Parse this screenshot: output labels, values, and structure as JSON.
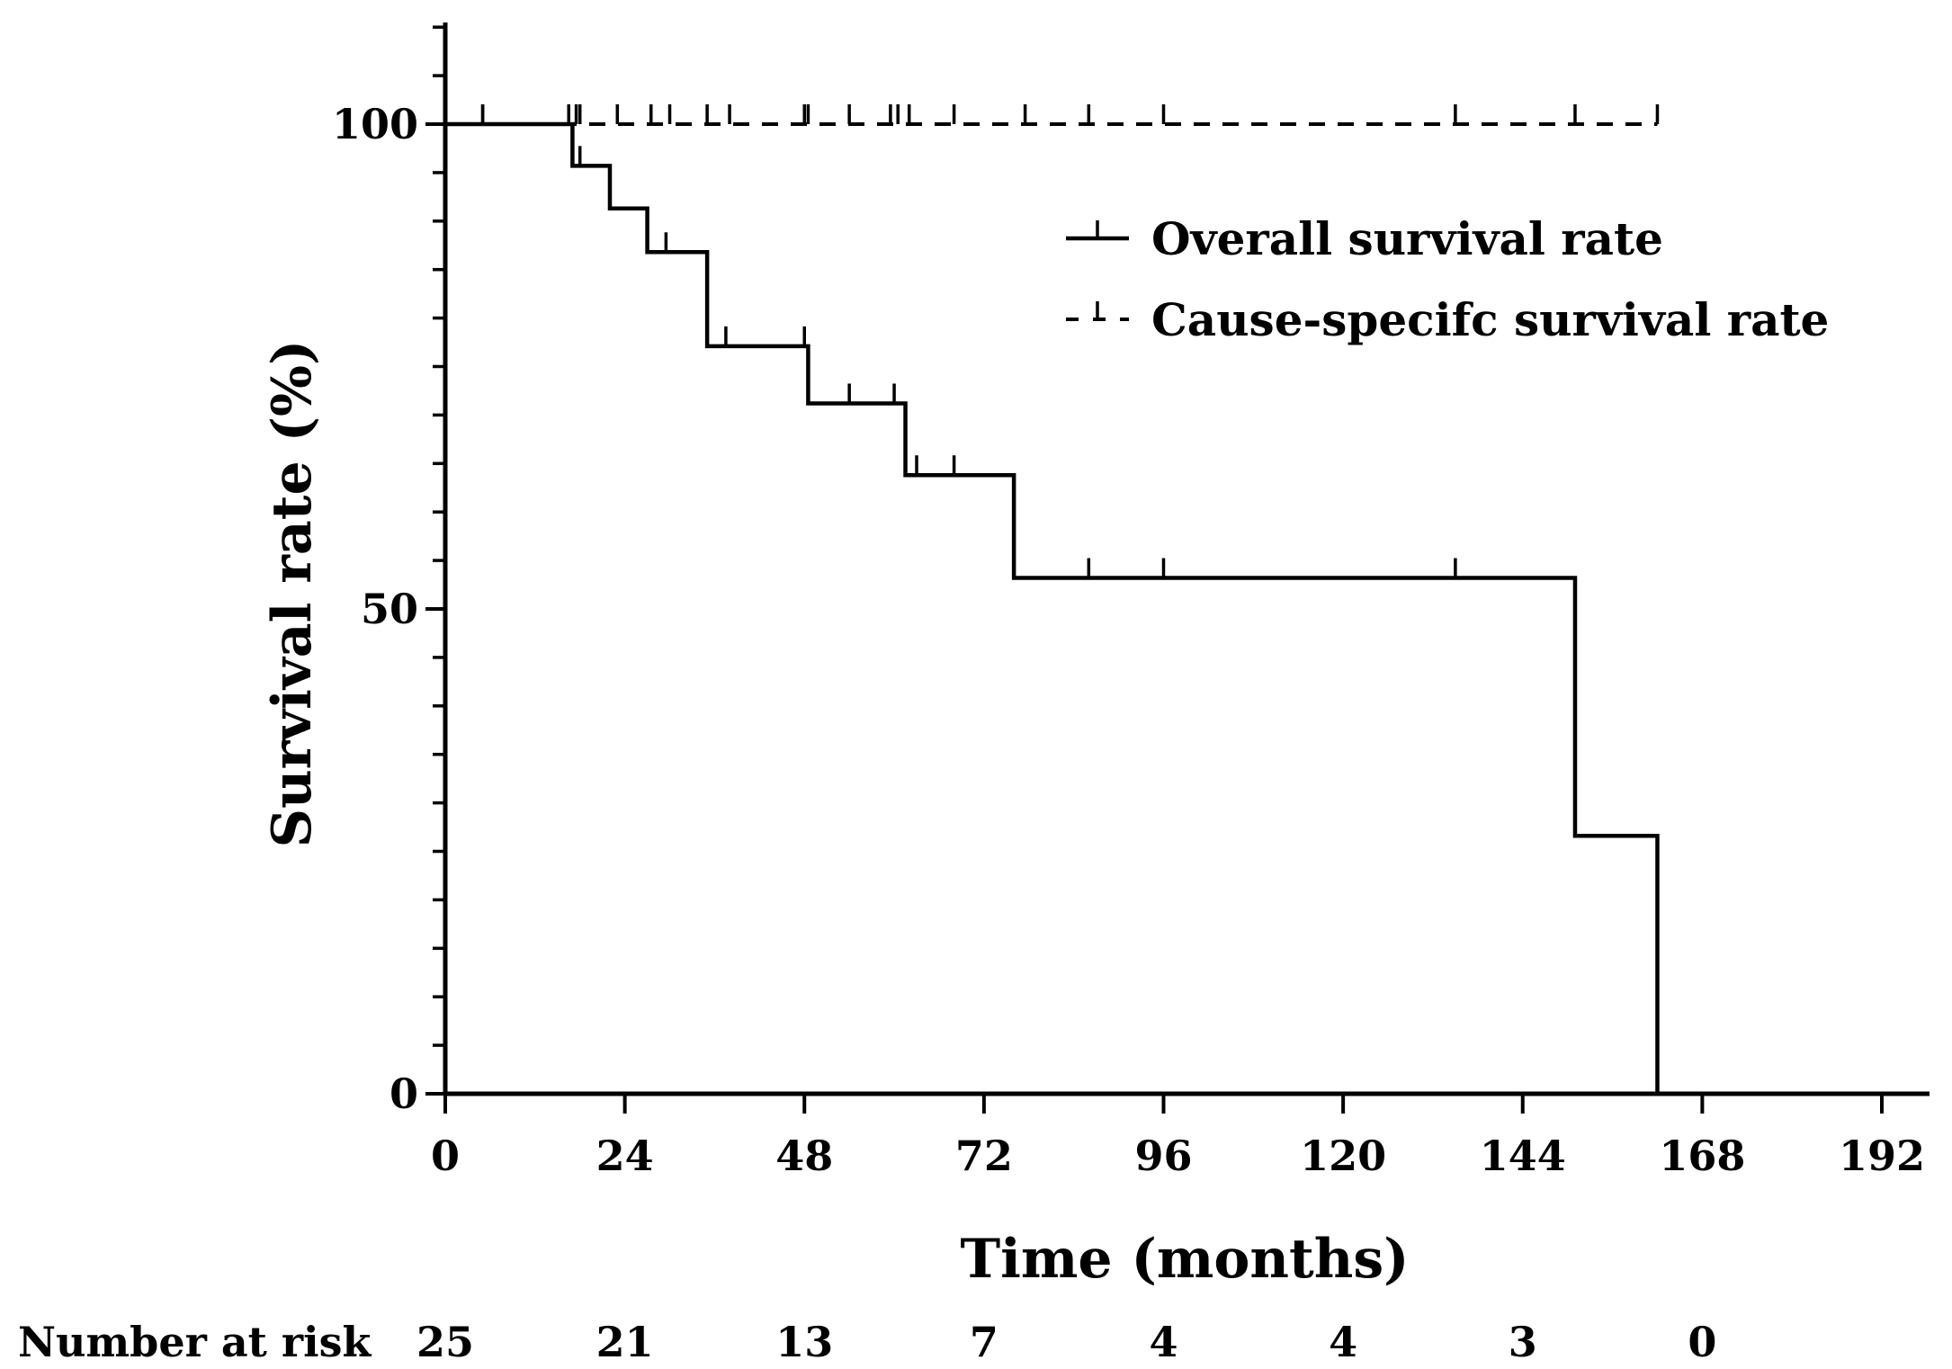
{
  "chart_data": {
    "type": "line",
    "subtype": "kaplan-meier",
    "title": "",
    "xlabel": "Time (months)",
    "ylabel": "Survival rate (%)",
    "xlim": [
      0,
      198
    ],
    "ylim": [
      0,
      110
    ],
    "x_ticks": [
      0,
      24,
      48,
      72,
      96,
      120,
      144,
      168,
      192
    ],
    "y_ticks": [
      0,
      50,
      100
    ],
    "y_minor_step": 5,
    "legend_position": "top-right",
    "series": [
      {
        "name": "Overall survival rate",
        "style": "solid",
        "steps": [
          {
            "x": 0,
            "y": 100
          },
          {
            "x": 17,
            "y": 95.7
          },
          {
            "x": 22,
            "y": 91.3
          },
          {
            "x": 27,
            "y": 86.8
          },
          {
            "x": 35,
            "y": 77.1
          },
          {
            "x": 48.5,
            "y": 71.2
          },
          {
            "x": 61.5,
            "y": 63.8
          },
          {
            "x": 76,
            "y": 53.2
          },
          {
            "x": 151,
            "y": 26.6
          },
          {
            "x": 162,
            "y": 0
          }
        ],
        "censored": [
          5,
          16.5,
          18,
          29.5,
          37.5,
          48,
          54,
          60,
          63,
          68,
          86,
          96,
          135
        ]
      },
      {
        "name": "Cause-specifc survival rate",
        "style": "dashed",
        "steps": [
          {
            "x": 0,
            "y": 100
          },
          {
            "x": 162,
            "y": 100
          }
        ],
        "censored": [
          5,
          16.5,
          17.5,
          18,
          23,
          27.5,
          30,
          35,
          38,
          48,
          48.5,
          54,
          59.5,
          60.5,
          62,
          68,
          77.5,
          86,
          96,
          135,
          151,
          162
        ]
      }
    ],
    "number_at_risk": {
      "label": "Number at risk",
      "times": [
        0,
        24,
        48,
        72,
        96,
        120,
        144,
        168
      ],
      "values": [
        "25",
        "21",
        "13",
        "7",
        "4",
        "4",
        "3",
        "0"
      ]
    }
  }
}
